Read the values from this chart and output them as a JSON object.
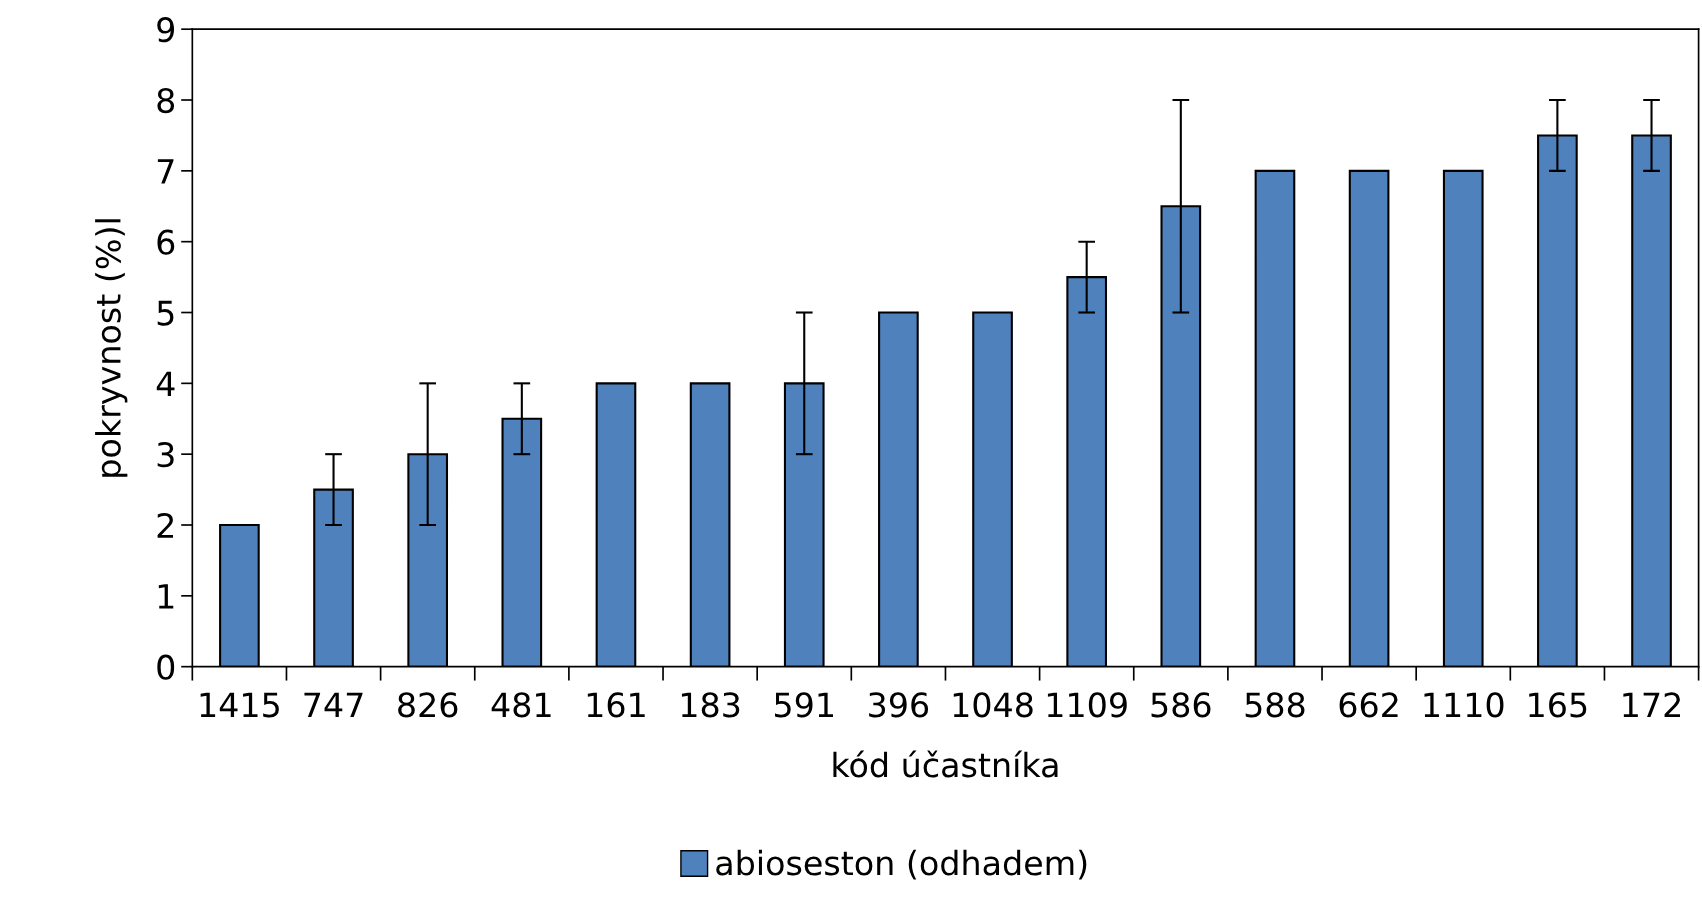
{
  "chart_data": {
    "type": "bar",
    "xlabel": "kód účastníka",
    "ylabel": "pokryvnost (%)l",
    "categories": [
      "1415",
      "747",
      "826",
      "481",
      "161",
      "183",
      "591",
      "396",
      "1048",
      "1109",
      "586",
      "588",
      "662",
      "1110",
      "165",
      "172"
    ],
    "series": [
      {
        "name": "abioseston (odhadem)",
        "color": "#4f81bd",
        "values": [
          2,
          2.5,
          3,
          3.5,
          4,
          4,
          4,
          5,
          5,
          5.5,
          6.5,
          7,
          7,
          7,
          7.5,
          7.5
        ],
        "errors": [
          null,
          0.5,
          1,
          0.5,
          null,
          null,
          1,
          null,
          null,
          0.5,
          1.5,
          null,
          null,
          null,
          0.5,
          0.5
        ]
      }
    ],
    "ylim": [
      0,
      9
    ],
    "yticks": [
      0,
      1,
      2,
      3,
      4,
      5,
      6,
      7,
      8,
      9
    ],
    "grid": false,
    "legend": "bottom"
  }
}
